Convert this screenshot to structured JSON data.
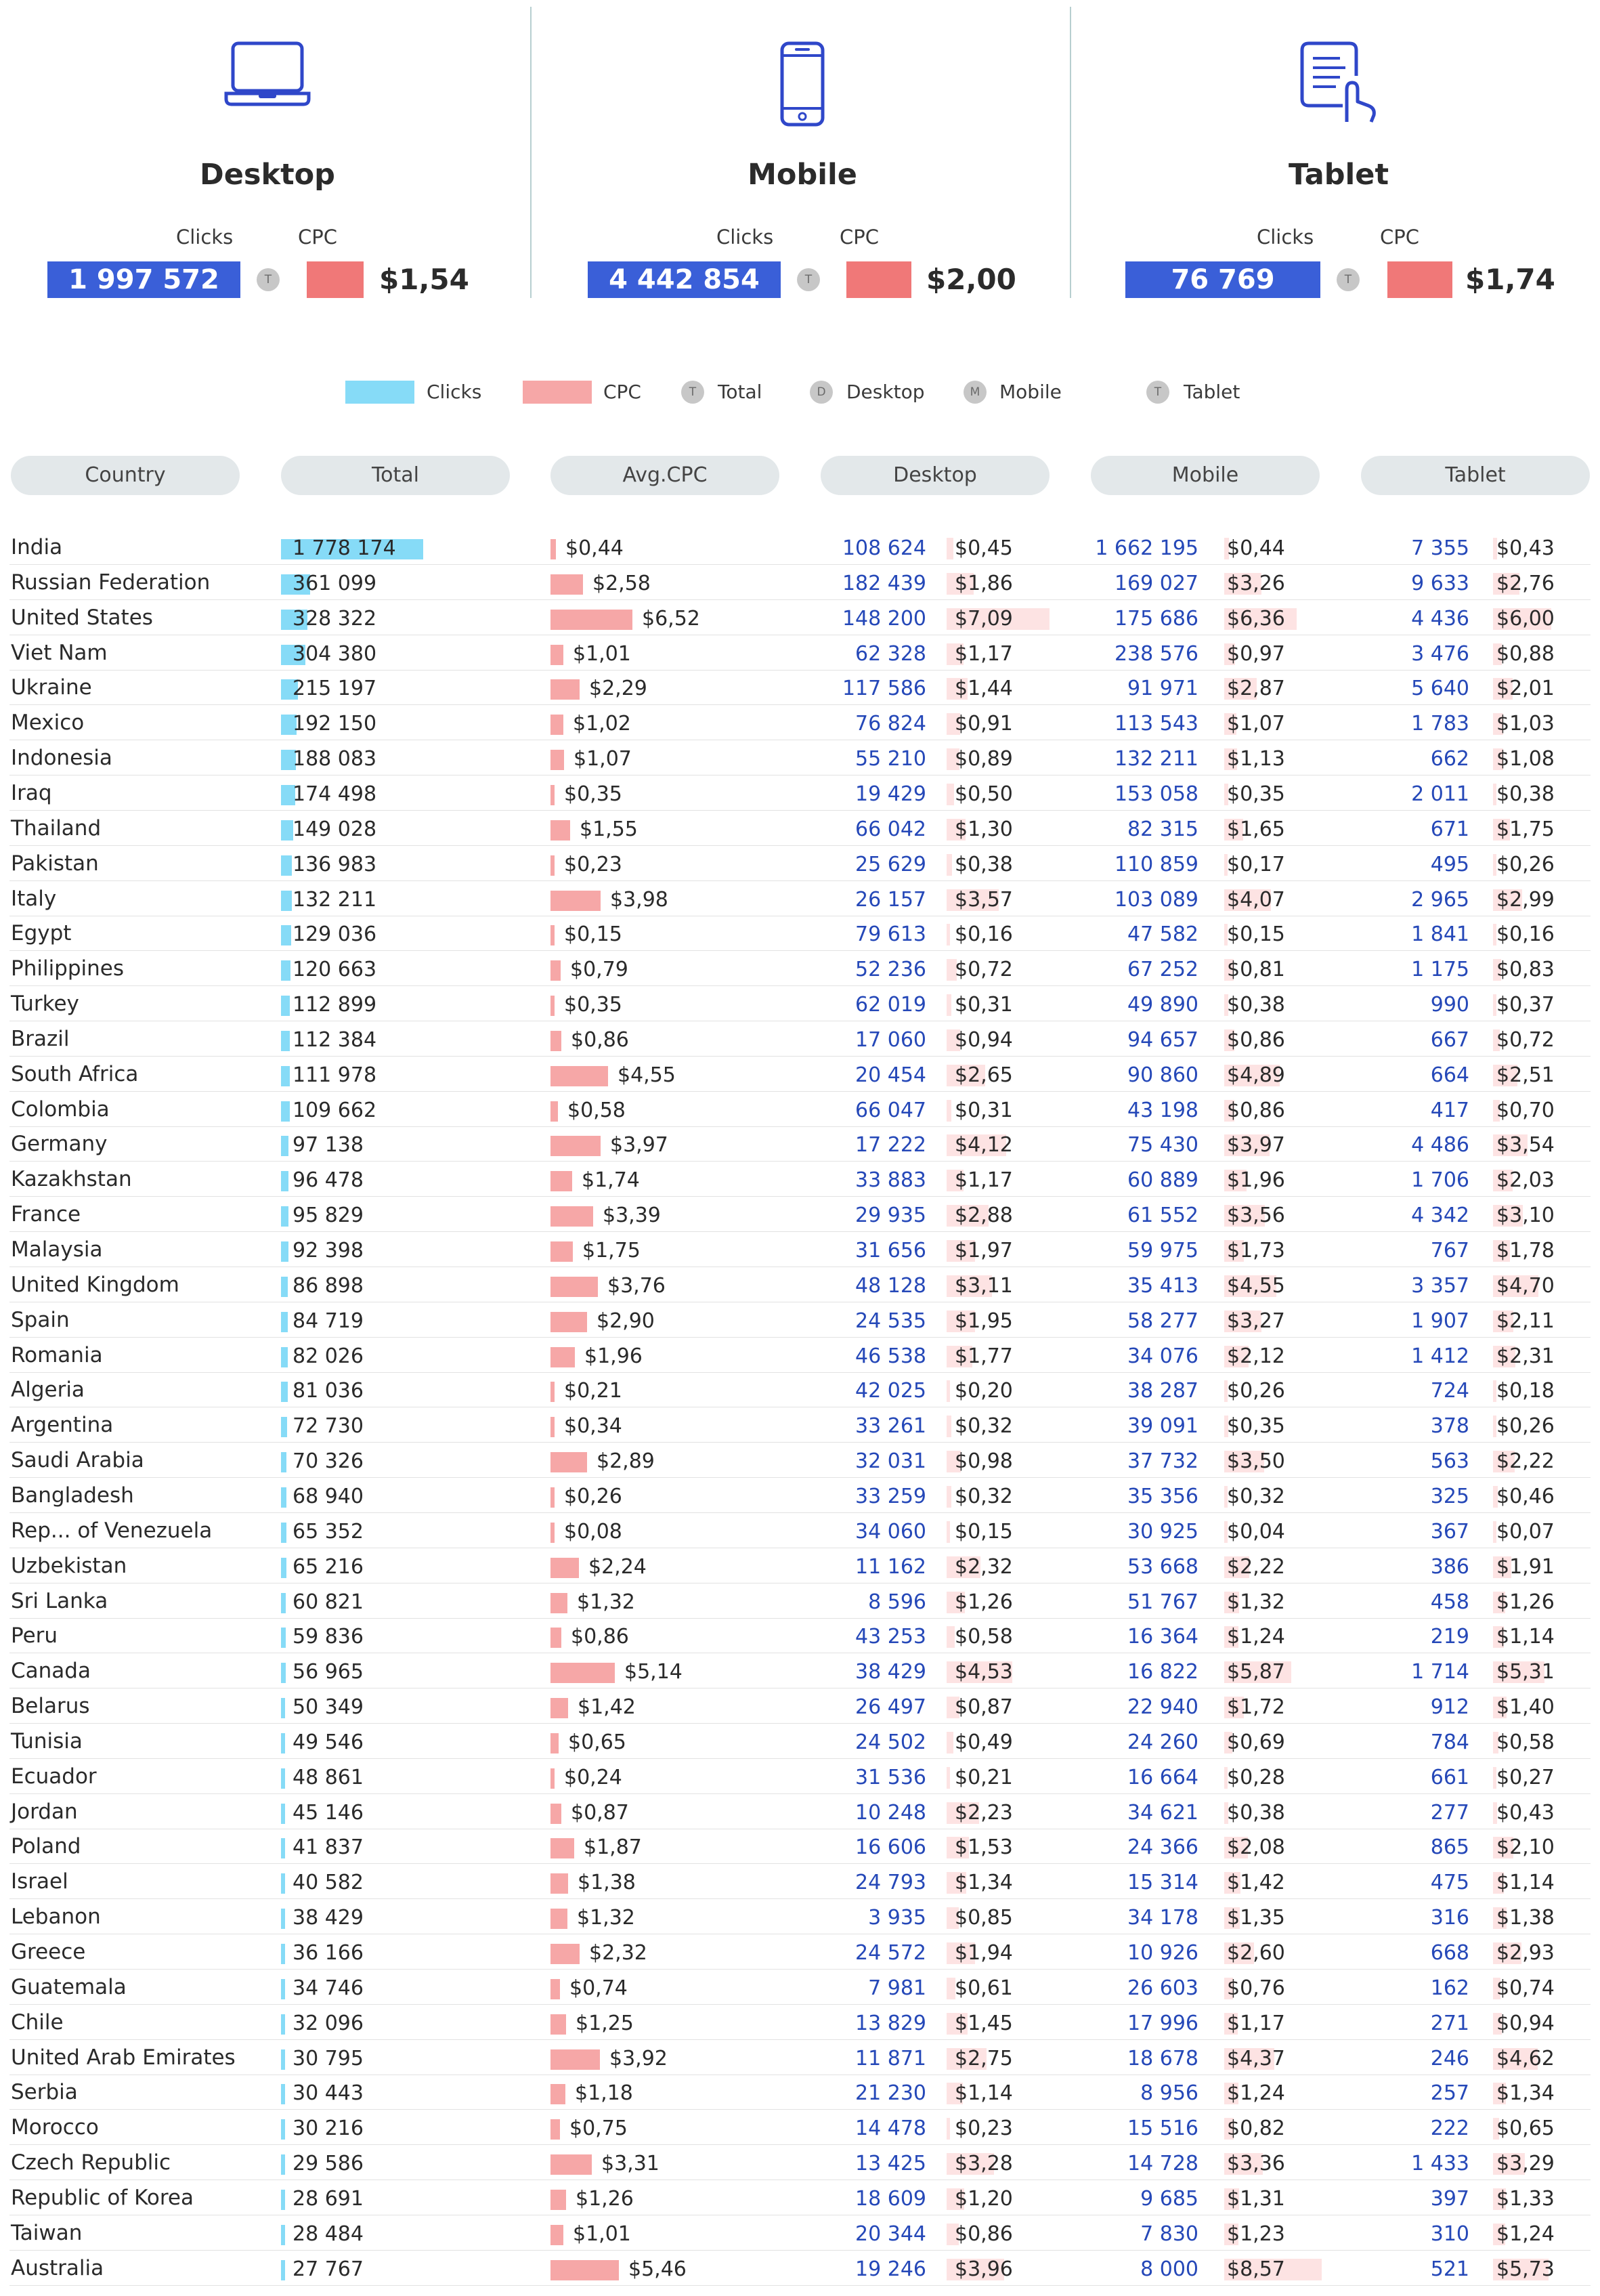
{
  "devices": [
    {
      "name": "Desktop",
      "clicks_label": "Clicks",
      "cpc_label": "CPC",
      "clicks": "1 997 572",
      "badge": "T",
      "cpc": "$1,54",
      "icon": "laptop-icon"
    },
    {
      "name": "Mobile",
      "clicks_label": "Clicks",
      "cpc_label": "CPC",
      "clicks": "4 442 854",
      "badge": "T",
      "cpc": "$2,00",
      "icon": "smartphone-icon"
    },
    {
      "name": "Tablet",
      "clicks_label": "Clicks",
      "cpc_label": "CPC",
      "clicks": "76 769",
      "badge": "T",
      "cpc": "$1,74",
      "icon": "tablet-icon"
    }
  ],
  "legend": {
    "clicks": "Clicks",
    "cpc": "CPC",
    "total_badge": "T",
    "total": "Total",
    "desktop_badge": "D",
    "desktop": "Desktop",
    "mobile_badge": "M",
    "mobile": "Mobile",
    "tablet_badge": "T",
    "tablet": "Tablet",
    "clicks_color": "#86dbf7",
    "cpc_color": "#f6a7a7"
  },
  "headers": [
    "Country",
    "Total",
    "Avg.CPC",
    "Desktop",
    "Mobile",
    "Tablet"
  ],
  "colors": {
    "kpi_clicks": "#3a5fd8",
    "kpi_cpc": "#f07878",
    "device_clicks_text": "#2548b8",
    "device_cpc_bar": "#fde3e3"
  },
  "chart_data": {
    "type": "table",
    "columns": [
      "Country",
      "Total clicks",
      "Avg.CPC",
      "Desktop clicks",
      "Desktop CPC",
      "Mobile clicks",
      "Mobile CPC",
      "Tablet clicks",
      "Tablet CPC"
    ],
    "rows": [
      {
        "country": "India",
        "total": "1 778 174",
        "avg_cpc": "$0,44",
        "desktop_clicks": "108 624",
        "desktop_cpc": "$0,45",
        "mobile_clicks": "1 662 195",
        "mobile_cpc": "$0,44",
        "tablet_clicks": "7 355",
        "tablet_cpc": "$0,43"
      },
      {
        "country": "Russian Federation",
        "total": "361 099",
        "avg_cpc": "$2,58",
        "desktop_clicks": "182 439",
        "desktop_cpc": "$1,86",
        "mobile_clicks": "169 027",
        "mobile_cpc": "$3,26",
        "tablet_clicks": "9 633",
        "tablet_cpc": "$2,76"
      },
      {
        "country": "United States",
        "total": "328 322",
        "avg_cpc": "$6,52",
        "desktop_clicks": "148 200",
        "desktop_cpc": "$7,09",
        "mobile_clicks": "175 686",
        "mobile_cpc": "$6,36",
        "tablet_clicks": "4 436",
        "tablet_cpc": "$6,00"
      },
      {
        "country": "Viet Nam",
        "total": "304 380",
        "avg_cpc": "$1,01",
        "desktop_clicks": "62 328",
        "desktop_cpc": "$1,17",
        "mobile_clicks": "238 576",
        "mobile_cpc": "$0,97",
        "tablet_clicks": "3 476",
        "tablet_cpc": "$0,88"
      },
      {
        "country": "Ukraine",
        "total": "215 197",
        "avg_cpc": "$2,29",
        "desktop_clicks": "117 586",
        "desktop_cpc": "$1,44",
        "mobile_clicks": "91 971",
        "mobile_cpc": "$2,87",
        "tablet_clicks": "5 640",
        "tablet_cpc": "$2,01"
      },
      {
        "country": "Mexico",
        "total": "192 150",
        "avg_cpc": "$1,02",
        "desktop_clicks": "76 824",
        "desktop_cpc": "$0,91",
        "mobile_clicks": "113 543",
        "mobile_cpc": "$1,07",
        "tablet_clicks": "1 783",
        "tablet_cpc": "$1,03"
      },
      {
        "country": "Indonesia",
        "total": "188 083",
        "avg_cpc": "$1,07",
        "desktop_clicks": "55 210",
        "desktop_cpc": "$0,89",
        "mobile_clicks": "132 211",
        "mobile_cpc": "$1,13",
        "tablet_clicks": "662",
        "tablet_cpc": "$1,08"
      },
      {
        "country": "Iraq",
        "total": "174 498",
        "avg_cpc": "$0,35",
        "desktop_clicks": "19 429",
        "desktop_cpc": "$0,50",
        "mobile_clicks": "153 058",
        "mobile_cpc": "$0,35",
        "tablet_clicks": "2 011",
        "tablet_cpc": "$0,38"
      },
      {
        "country": "Thailand",
        "total": "149 028",
        "avg_cpc": "$1,55",
        "desktop_clicks": "66 042",
        "desktop_cpc": "$1,30",
        "mobile_clicks": "82 315",
        "mobile_cpc": "$1,65",
        "tablet_clicks": "671",
        "tablet_cpc": "$1,75"
      },
      {
        "country": "Pakistan",
        "total": "136 983",
        "avg_cpc": "$0,23",
        "desktop_clicks": "25 629",
        "desktop_cpc": "$0,38",
        "mobile_clicks": "110 859",
        "mobile_cpc": "$0,17",
        "tablet_clicks": "495",
        "tablet_cpc": "$0,26"
      },
      {
        "country": "Italy",
        "total": "132 211",
        "avg_cpc": "$3,98",
        "desktop_clicks": "26 157",
        "desktop_cpc": "$3,57",
        "mobile_clicks": "103 089",
        "mobile_cpc": "$4,07",
        "tablet_clicks": "2 965",
        "tablet_cpc": "$2,99"
      },
      {
        "country": "Egypt",
        "total": "129 036",
        "avg_cpc": "$0,15",
        "desktop_clicks": "79 613",
        "desktop_cpc": "$0,16",
        "mobile_clicks": "47 582",
        "mobile_cpc": "$0,15",
        "tablet_clicks": "1 841",
        "tablet_cpc": "$0,16"
      },
      {
        "country": "Philippines",
        "total": "120 663",
        "avg_cpc": "$0,79",
        "desktop_clicks": "52 236",
        "desktop_cpc": "$0,72",
        "mobile_clicks": "67 252",
        "mobile_cpc": "$0,81",
        "tablet_clicks": "1 175",
        "tablet_cpc": "$0,83"
      },
      {
        "country": "Turkey",
        "total": "112 899",
        "avg_cpc": "$0,35",
        "desktop_clicks": "62 019",
        "desktop_cpc": "$0,31",
        "mobile_clicks": "49 890",
        "mobile_cpc": "$0,38",
        "tablet_clicks": "990",
        "tablet_cpc": "$0,37"
      },
      {
        "country": "Brazil",
        "total": "112 384",
        "avg_cpc": "$0,86",
        "desktop_clicks": "17 060",
        "desktop_cpc": "$0,94",
        "mobile_clicks": "94 657",
        "mobile_cpc": "$0,86",
        "tablet_clicks": "667",
        "tablet_cpc": "$0,72"
      },
      {
        "country": "South Africa",
        "total": "111 978",
        "avg_cpc": "$4,55",
        "desktop_clicks": "20 454",
        "desktop_cpc": "$2,65",
        "mobile_clicks": "90 860",
        "mobile_cpc": "$4,89",
        "tablet_clicks": "664",
        "tablet_cpc": "$2,51"
      },
      {
        "country": "Colombia",
        "total": "109 662",
        "avg_cpc": "$0,58",
        "desktop_clicks": "66 047",
        "desktop_cpc": "$0,31",
        "mobile_clicks": "43 198",
        "mobile_cpc": "$0,86",
        "tablet_clicks": "417",
        "tablet_cpc": "$0,70"
      },
      {
        "country": "Germany",
        "total": "97 138",
        "avg_cpc": "$3,97",
        "desktop_clicks": "17 222",
        "desktop_cpc": "$4,12",
        "mobile_clicks": "75 430",
        "mobile_cpc": "$3,97",
        "tablet_clicks": "4 486",
        "tablet_cpc": "$3,54"
      },
      {
        "country": "Kazakhstan",
        "total": "96 478",
        "avg_cpc": "$1,74",
        "desktop_clicks": "33 883",
        "desktop_cpc": "$1,17",
        "mobile_clicks": "60 889",
        "mobile_cpc": "$1,96",
        "tablet_clicks": "1 706",
        "tablet_cpc": "$2,03"
      },
      {
        "country": "France",
        "total": "95 829",
        "avg_cpc": "$3,39",
        "desktop_clicks": "29 935",
        "desktop_cpc": "$2,88",
        "mobile_clicks": "61 552",
        "mobile_cpc": "$3,56",
        "tablet_clicks": "4 342",
        "tablet_cpc": "$3,10"
      },
      {
        "country": "Malaysia",
        "total": "92 398",
        "avg_cpc": "$1,75",
        "desktop_clicks": "31 656",
        "desktop_cpc": "$1,97",
        "mobile_clicks": "59 975",
        "mobile_cpc": "$1,73",
        "tablet_clicks": "767",
        "tablet_cpc": "$1,78"
      },
      {
        "country": "United Kingdom",
        "total": "86 898",
        "avg_cpc": "$3,76",
        "desktop_clicks": "48 128",
        "desktop_cpc": "$3,11",
        "mobile_clicks": "35 413",
        "mobile_cpc": "$4,55",
        "tablet_clicks": "3 357",
        "tablet_cpc": "$4,70"
      },
      {
        "country": "Spain",
        "total": "84 719",
        "avg_cpc": "$2,90",
        "desktop_clicks": "24 535",
        "desktop_cpc": "$1,95",
        "mobile_clicks": "58 277",
        "mobile_cpc": "$3,27",
        "tablet_clicks": "1 907",
        "tablet_cpc": "$2,11"
      },
      {
        "country": "Romania",
        "total": "82 026",
        "avg_cpc": "$1,96",
        "desktop_clicks": "46 538",
        "desktop_cpc": "$1,77",
        "mobile_clicks": "34 076",
        "mobile_cpc": "$2,12",
        "tablet_clicks": "1 412",
        "tablet_cpc": "$2,31"
      },
      {
        "country": "Algeria",
        "total": "81 036",
        "avg_cpc": "$0,21",
        "desktop_clicks": "42 025",
        "desktop_cpc": "$0,20",
        "mobile_clicks": "38 287",
        "mobile_cpc": "$0,26",
        "tablet_clicks": "724",
        "tablet_cpc": "$0,18"
      },
      {
        "country": "Argentina",
        "total": "72 730",
        "avg_cpc": "$0,34",
        "desktop_clicks": "33 261",
        "desktop_cpc": "$0,32",
        "mobile_clicks": "39 091",
        "mobile_cpc": "$0,35",
        "tablet_clicks": "378",
        "tablet_cpc": "$0,26"
      },
      {
        "country": "Saudi Arabia",
        "total": "70 326",
        "avg_cpc": "$2,89",
        "desktop_clicks": "32 031",
        "desktop_cpc": "$0,98",
        "mobile_clicks": "37 732",
        "mobile_cpc": "$3,50",
        "tablet_clicks": "563",
        "tablet_cpc": "$2,22"
      },
      {
        "country": "Bangladesh",
        "total": "68 940",
        "avg_cpc": "$0,26",
        "desktop_clicks": "33 259",
        "desktop_cpc": "$0,32",
        "mobile_clicks": "35 356",
        "mobile_cpc": "$0,32",
        "tablet_clicks": "325",
        "tablet_cpc": "$0,46"
      },
      {
        "country": "Rep... of Venezuela",
        "total": "65 352",
        "avg_cpc": "$0,08",
        "desktop_clicks": "34 060",
        "desktop_cpc": "$0,15",
        "mobile_clicks": "30 925",
        "mobile_cpc": "$0,04",
        "tablet_clicks": "367",
        "tablet_cpc": "$0,07"
      },
      {
        "country": "Uzbekistan",
        "total": "65 216",
        "avg_cpc": "$2,24",
        "desktop_clicks": "11 162",
        "desktop_cpc": "$2,32",
        "mobile_clicks": "53 668",
        "mobile_cpc": "$2,22",
        "tablet_clicks": "386",
        "tablet_cpc": "$1,91"
      },
      {
        "country": "Sri Lanka",
        "total": "60 821",
        "avg_cpc": "$1,32",
        "desktop_clicks": "8 596",
        "desktop_cpc": "$1,26",
        "mobile_clicks": "51 767",
        "mobile_cpc": "$1,32",
        "tablet_clicks": "458",
        "tablet_cpc": "$1,26"
      },
      {
        "country": "Peru",
        "total": "59 836",
        "avg_cpc": "$0,86",
        "desktop_clicks": "43 253",
        "desktop_cpc": "$0,58",
        "mobile_clicks": "16 364",
        "mobile_cpc": "$1,24",
        "tablet_clicks": "219",
        "tablet_cpc": "$1,14"
      },
      {
        "country": "Canada",
        "total": "56 965",
        "avg_cpc": "$5,14",
        "desktop_clicks": "38 429",
        "desktop_cpc": "$4,53",
        "mobile_clicks": "16 822",
        "mobile_cpc": "$5,87",
        "tablet_clicks": "1 714",
        "tablet_cpc": "$5,31"
      },
      {
        "country": "Belarus",
        "total": "50 349",
        "avg_cpc": "$1,42",
        "desktop_clicks": "26 497",
        "desktop_cpc": "$0,87",
        "mobile_clicks": "22 940",
        "mobile_cpc": "$1,72",
        "tablet_clicks": "912",
        "tablet_cpc": "$1,40"
      },
      {
        "country": "Tunisia",
        "total": "49 546",
        "avg_cpc": "$0,65",
        "desktop_clicks": "24 502",
        "desktop_cpc": "$0,49",
        "mobile_clicks": "24 260",
        "mobile_cpc": "$0,69",
        "tablet_clicks": "784",
        "tablet_cpc": "$0,58"
      },
      {
        "country": "Ecuador",
        "total": "48 861",
        "avg_cpc": "$0,24",
        "desktop_clicks": "31 536",
        "desktop_cpc": "$0,21",
        "mobile_clicks": "16 664",
        "mobile_cpc": "$0,28",
        "tablet_clicks": "661",
        "tablet_cpc": "$0,27"
      },
      {
        "country": "Jordan",
        "total": "45 146",
        "avg_cpc": "$0,87",
        "desktop_clicks": "10 248",
        "desktop_cpc": "$2,23",
        "mobile_clicks": "34 621",
        "mobile_cpc": "$0,38",
        "tablet_clicks": "277",
        "tablet_cpc": "$0,43"
      },
      {
        "country": "Poland",
        "total": "41 837",
        "avg_cpc": "$1,87",
        "desktop_clicks": "16 606",
        "desktop_cpc": "$1,53",
        "mobile_clicks": "24 366",
        "mobile_cpc": "$2,08",
        "tablet_clicks": "865",
        "tablet_cpc": "$2,10"
      },
      {
        "country": "Israel",
        "total": "40 582",
        "avg_cpc": "$1,38",
        "desktop_clicks": "24 793",
        "desktop_cpc": "$1,34",
        "mobile_clicks": "15 314",
        "mobile_cpc": "$1,42",
        "tablet_clicks": "475",
        "tablet_cpc": "$1,14"
      },
      {
        "country": "Lebanon",
        "total": "38 429",
        "avg_cpc": "$1,32",
        "desktop_clicks": "3 935",
        "desktop_cpc": "$0,85",
        "mobile_clicks": "34 178",
        "mobile_cpc": "$1,35",
        "tablet_clicks": "316",
        "tablet_cpc": "$1,38"
      },
      {
        "country": "Greece",
        "total": "36 166",
        "avg_cpc": "$2,32",
        "desktop_clicks": "24 572",
        "desktop_cpc": "$1,94",
        "mobile_clicks": "10 926",
        "mobile_cpc": "$2,60",
        "tablet_clicks": "668",
        "tablet_cpc": "$2,93"
      },
      {
        "country": "Guatemala",
        "total": "34 746",
        "avg_cpc": "$0,74",
        "desktop_clicks": "7 981",
        "desktop_cpc": "$0,61",
        "mobile_clicks": "26 603",
        "mobile_cpc": "$0,76",
        "tablet_clicks": "162",
        "tablet_cpc": "$0,74"
      },
      {
        "country": "Chile",
        "total": "32 096",
        "avg_cpc": "$1,25",
        "desktop_clicks": "13 829",
        "desktop_cpc": "$1,45",
        "mobile_clicks": "17 996",
        "mobile_cpc": "$1,17",
        "tablet_clicks": "271",
        "tablet_cpc": "$0,94"
      },
      {
        "country": "United Arab Emirates",
        "total": "30 795",
        "avg_cpc": "$3,92",
        "desktop_clicks": "11 871",
        "desktop_cpc": "$2,75",
        "mobile_clicks": "18 678",
        "mobile_cpc": "$4,37",
        "tablet_clicks": "246",
        "tablet_cpc": "$4,62"
      },
      {
        "country": "Serbia",
        "total": "30 443",
        "avg_cpc": "$1,18",
        "desktop_clicks": "21 230",
        "desktop_cpc": "$1,14",
        "mobile_clicks": "8 956",
        "mobile_cpc": "$1,24",
        "tablet_clicks": "257",
        "tablet_cpc": "$1,34"
      },
      {
        "country": "Morocco",
        "total": "30 216",
        "avg_cpc": "$0,75",
        "desktop_clicks": "14 478",
        "desktop_cpc": "$0,23",
        "mobile_clicks": "15 516",
        "mobile_cpc": "$0,82",
        "tablet_clicks": "222",
        "tablet_cpc": "$0,65"
      },
      {
        "country": "Czech Republic",
        "total": "29 586",
        "avg_cpc": "$3,31",
        "desktop_clicks": "13 425",
        "desktop_cpc": "$3,28",
        "mobile_clicks": "14 728",
        "mobile_cpc": "$3,36",
        "tablet_clicks": "1 433",
        "tablet_cpc": "$3,29"
      },
      {
        "country": "Republic of Korea",
        "total": "28 691",
        "avg_cpc": "$1,26",
        "desktop_clicks": "18 609",
        "desktop_cpc": "$1,20",
        "mobile_clicks": "9 685",
        "mobile_cpc": "$1,31",
        "tablet_clicks": "397",
        "tablet_cpc": "$1,33"
      },
      {
        "country": "Taiwan",
        "total": "28 484",
        "avg_cpc": "$1,01",
        "desktop_clicks": "20 344",
        "desktop_cpc": "$0,86",
        "mobile_clicks": "7 830",
        "mobile_cpc": "$1,23",
        "tablet_clicks": "310",
        "tablet_cpc": "$1,24"
      },
      {
        "country": "Australia",
        "total": "27 767",
        "avg_cpc": "$5,46",
        "desktop_clicks": "19 246",
        "desktop_cpc": "$3,96",
        "mobile_clicks": "8 000",
        "mobile_cpc": "$8,57",
        "tablet_clicks": "521",
        "tablet_cpc": "$5,73"
      }
    ]
  }
}
